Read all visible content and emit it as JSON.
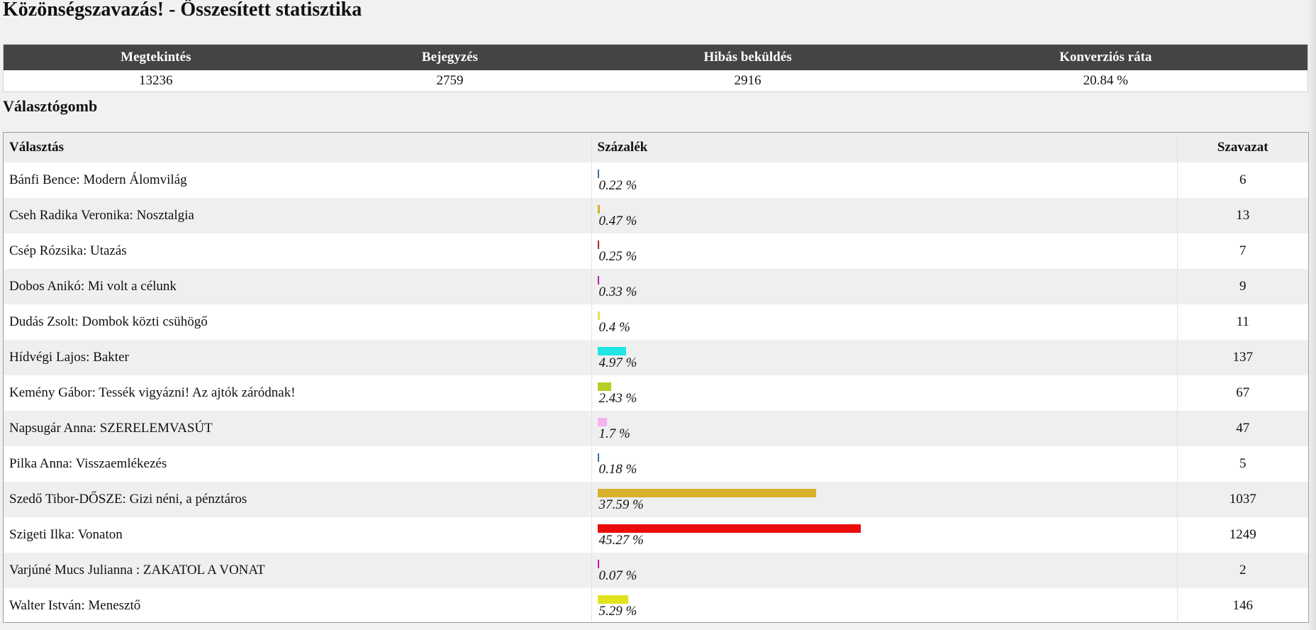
{
  "page": {
    "title": "Közönségszavazás! - Összesített statisztika",
    "section_title": "Választógomb"
  },
  "summary": {
    "headers": [
      "Megtekintés",
      "Bejegyzés",
      "Hibás beküldés",
      "Konverziós ráta"
    ],
    "values": [
      "13236",
      "2759",
      "2916",
      "20.84 %"
    ]
  },
  "results_table": {
    "headers": [
      "Választás",
      "Százalék",
      "Szavazat"
    ],
    "rows": [
      {
        "choice": "Bánfi Bence: Modern Álomvilág",
        "percent_label": "0.22 %",
        "percent": 0.22,
        "votes": "6",
        "color": "#2f6fb0"
      },
      {
        "choice": "Cseh Radika Veronika: Nosztalgia",
        "percent_label": "0.47 %",
        "percent": 0.47,
        "votes": "13",
        "color": "#d8b02a"
      },
      {
        "choice": "Csép Rózsika: Utazás",
        "percent_label": "0.25 %",
        "percent": 0.25,
        "votes": "7",
        "color": "#a12525"
      },
      {
        "choice": "Dobos Anikó: Mi volt a célunk",
        "percent_label": "0.33 %",
        "percent": 0.33,
        "votes": "9",
        "color": "#c21fa8"
      },
      {
        "choice": "Dudás Zsolt: Dombok közti csühögő",
        "percent_label": "0.4 %",
        "percent": 0.4,
        "votes": "11",
        "color": "#e7df54"
      },
      {
        "choice": "Hídvégi Lajos: Bakter",
        "percent_label": "4.97 %",
        "percent": 4.97,
        "votes": "137",
        "color": "#22e5e5"
      },
      {
        "choice": "Kemény Gábor: Tessék vigyázni! Az ajtók záródnak!",
        "percent_label": "2.43 %",
        "percent": 2.43,
        "votes": "67",
        "color": "#b7cf23"
      },
      {
        "choice": "Napsugár Anna: SZERELEMVASÚT",
        "percent_label": "1.7 %",
        "percent": 1.7,
        "votes": "47",
        "color": "#f3b3ef"
      },
      {
        "choice": "Pilka Anna: Visszaemlékezés",
        "percent_label": "0.18 %",
        "percent": 0.18,
        "votes": "5",
        "color": "#2f6fb0"
      },
      {
        "choice": "Szedő Tibor-DŐSZE: Gizi néni, a pénztáros",
        "percent_label": "37.59 %",
        "percent": 37.59,
        "votes": "1037",
        "color": "#d8b02a"
      },
      {
        "choice": "Szigeti Ilka: Vonaton",
        "percent_label": "45.27 %",
        "percent": 45.27,
        "votes": "1249",
        "color": "#ea0c0c"
      },
      {
        "choice": "Varjúné Mucs Julianna : ZAKATOL A VONAT",
        "percent_label": "0.07 %",
        "percent": 0.07,
        "votes": "2",
        "color": "#c21fa8"
      },
      {
        "choice": "Walter István: Menesztő",
        "percent_label": "5.29 %",
        "percent": 5.29,
        "votes": "146",
        "color": "#e2e21e"
      }
    ]
  }
}
